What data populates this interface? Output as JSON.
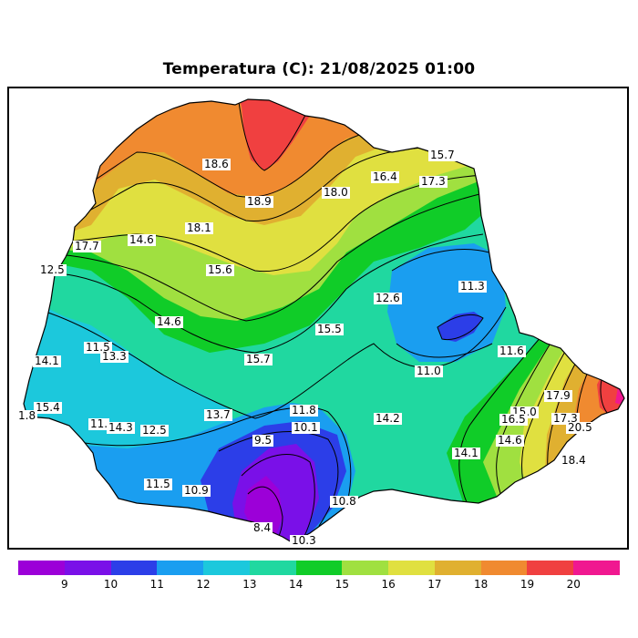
{
  "title": "Temperatura (C): 21/08/2025 01:00",
  "colorbar": {
    "colors": [
      "#9c00d8",
      "#7a10e8",
      "#2c3ee8",
      "#1a9ef0",
      "#1cc8dc",
      "#20d8a0",
      "#10cc28",
      "#a0e040",
      "#e0e040",
      "#e0b030",
      "#f08a30",
      "#f04040",
      "#f01890"
    ],
    "tick_labels": [
      "9",
      "10",
      "11",
      "12",
      "13",
      "14",
      "15",
      "16",
      "17",
      "18",
      "19",
      "20"
    ]
  },
  "labels": [
    "18.6",
    "15.7",
    "16.4",
    "17.3",
    "18.9",
    "18.0",
    "18.1",
    "17.7",
    "14.6",
    "12.5",
    "15.6",
    "11.3",
    "12.6",
    "14.6",
    "15.5",
    "11.5",
    "13.3",
    "11.6",
    "15.7",
    "14.1",
    "11.0",
    "17.9",
    "15.4",
    "11.8",
    "13.7",
    "14.2",
    "1.8",
    "11.",
    "14.3",
    "12.5",
    "10.1",
    "15.0",
    "16.5",
    "17.3",
    "20.5",
    "9.5",
    "14.6",
    "14.1",
    "18.4",
    "11.5",
    "10.9",
    "10.8",
    "8.4",
    "10.3"
  ]
}
